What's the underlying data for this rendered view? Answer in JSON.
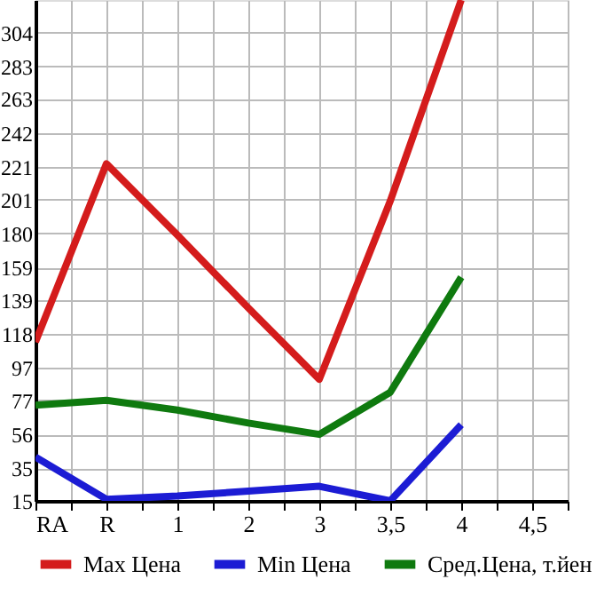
{
  "chart_data": {
    "type": "line",
    "categories": [
      "RA",
      "R",
      "1",
      "2",
      "3",
      "3,5",
      "4",
      "4,5"
    ],
    "series": [
      {
        "name": "Max Цена",
        "color": "#d41c1c",
        "values": [
          113,
          223,
          179,
          134,
          90,
          200,
          324,
          null
        ]
      },
      {
        "name": "Min Цена",
        "color": "#1c1cd4",
        "values": [
          42,
          16,
          18,
          21,
          24,
          15,
          62,
          null
        ]
      },
      {
        "name": "Сред.Цена, т.йен",
        "color": "#0f7a0f",
        "values": [
          74,
          77,
          71,
          63,
          56,
          82,
          153,
          null
        ]
      }
    ],
    "ylim": [
      15,
      324
    ],
    "yticks": [
      15,
      35,
      56,
      77,
      97,
      118,
      139,
      159,
      180,
      201,
      221,
      242,
      263,
      283,
      304
    ],
    "grid": true,
    "legend": "bottom",
    "marker": "none",
    "line_style": "solid"
  }
}
